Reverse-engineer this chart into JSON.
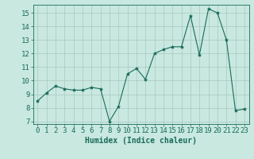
{
  "x": [
    0,
    1,
    2,
    3,
    4,
    5,
    6,
    7,
    8,
    9,
    10,
    11,
    12,
    13,
    14,
    15,
    16,
    17,
    18,
    19,
    20,
    21,
    22,
    23
  ],
  "y": [
    8.5,
    9.1,
    9.6,
    9.4,
    9.3,
    9.3,
    9.5,
    9.4,
    7.0,
    8.1,
    10.5,
    10.9,
    10.1,
    12.0,
    12.3,
    12.5,
    12.5,
    14.8,
    11.9,
    15.3,
    15.0,
    13.0,
    7.8,
    7.9
  ],
  "line_color": "#1a6b5a",
  "marker": "*",
  "marker_size": 3,
  "bg_color": "#c8e8e0",
  "grid_color": "#aac8c0",
  "xlabel": "Humidex (Indice chaleur)",
  "ylabel_ticks": [
    7,
    8,
    9,
    10,
    11,
    12,
    13,
    14,
    15
  ],
  "xlim": [
    -0.5,
    23.5
  ],
  "ylim": [
    6.8,
    15.6
  ],
  "xtick_labels": [
    "0",
    "1",
    "2",
    "3",
    "4",
    "5",
    "6",
    "7",
    "8",
    "9",
    "10",
    "11",
    "12",
    "13",
    "14",
    "15",
    "16",
    "17",
    "18",
    "19",
    "20",
    "21",
    "22",
    "23"
  ],
  "spine_color": "#1a6b5a",
  "tick_color": "#1a6b5a",
  "label_color": "#1a6b5a",
  "font_size_label": 7,
  "font_size_tick": 6.5
}
